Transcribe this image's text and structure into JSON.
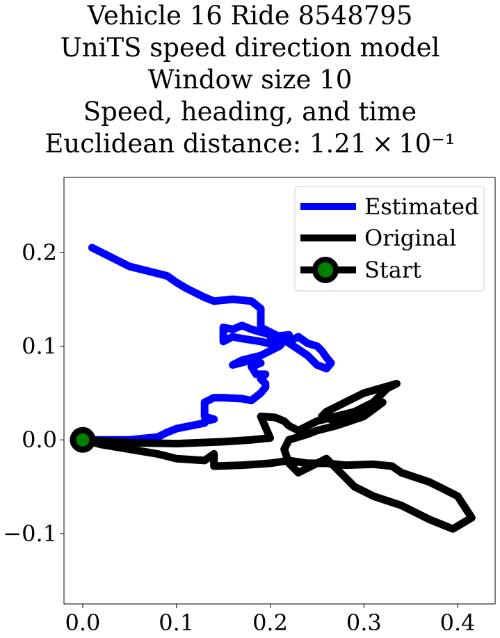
{
  "title_lines": [
    "Vehicle 16 Ride 8548795",
    "UniTS speed direction model",
    "Window size 10",
    "Speed, heading, and time",
    "Euclidean distance: 1.21 × 10⁻¹"
  ],
  "chart_data": {
    "type": "line",
    "xlim": [
      -0.02,
      0.44
    ],
    "ylim": [
      -0.175,
      0.28
    ],
    "x_ticks": [
      0.0,
      0.1,
      0.2,
      0.3,
      0.4
    ],
    "x_tick_labels": [
      "0.0",
      "0.1",
      "0.2",
      "0.3",
      "0.4"
    ],
    "y_ticks": [
      -0.1,
      0.0,
      0.1,
      0.2
    ],
    "y_tick_labels": [
      "−0.1",
      "0.0",
      "0.1",
      "0.2"
    ],
    "grid": false,
    "legend_position": "top-right",
    "legend": [
      "Estimated",
      "Original",
      "Start"
    ],
    "series": [
      {
        "name": "Estimated",
        "color": "#0000ff",
        "points": [
          [
            0.0,
            0.0
          ],
          [
            0.02,
            0.0
          ],
          [
            0.05,
            0.0
          ],
          [
            0.07,
            0.002
          ],
          [
            0.08,
            0.003
          ],
          [
            0.09,
            0.008
          ],
          [
            0.1,
            0.012
          ],
          [
            0.11,
            0.014
          ],
          [
            0.12,
            0.016
          ],
          [
            0.13,
            0.018
          ],
          [
            0.13,
            0.02
          ],
          [
            0.14,
            0.022
          ],
          [
            0.13,
            0.025
          ],
          [
            0.13,
            0.03
          ],
          [
            0.13,
            0.035
          ],
          [
            0.13,
            0.04
          ],
          [
            0.14,
            0.045
          ],
          [
            0.15,
            0.045
          ],
          [
            0.17,
            0.044
          ],
          [
            0.18,
            0.042
          ],
          [
            0.19,
            0.05
          ],
          [
            0.195,
            0.056
          ],
          [
            0.195,
            0.06
          ],
          [
            0.19,
            0.065
          ],
          [
            0.195,
            0.07
          ],
          [
            0.185,
            0.07
          ],
          [
            0.18,
            0.078
          ],
          [
            0.19,
            0.082
          ],
          [
            0.18,
            0.085
          ],
          [
            0.16,
            0.08
          ],
          [
            0.17,
            0.085
          ],
          [
            0.19,
            0.09
          ],
          [
            0.2,
            0.095
          ],
          [
            0.21,
            0.1
          ],
          [
            0.2,
            0.11
          ],
          [
            0.22,
            0.112
          ],
          [
            0.21,
            0.1
          ],
          [
            0.19,
            0.105
          ],
          [
            0.17,
            0.108
          ],
          [
            0.16,
            0.11
          ],
          [
            0.15,
            0.105
          ],
          [
            0.15,
            0.12
          ],
          [
            0.16,
            0.118
          ],
          [
            0.17,
            0.122
          ],
          [
            0.18,
            0.118
          ],
          [
            0.19,
            0.115
          ],
          [
            0.21,
            0.11
          ],
          [
            0.22,
            0.105
          ],
          [
            0.23,
            0.11
          ],
          [
            0.24,
            0.103
          ],
          [
            0.25,
            0.1
          ],
          [
            0.255,
            0.095
          ],
          [
            0.26,
            0.088
          ],
          [
            0.265,
            0.082
          ],
          [
            0.26,
            0.076
          ],
          [
            0.25,
            0.08
          ],
          [
            0.24,
            0.09
          ],
          [
            0.225,
            0.1
          ],
          [
            0.21,
            0.11
          ],
          [
            0.2,
            0.115
          ],
          [
            0.19,
            0.12
          ],
          [
            0.19,
            0.14
          ],
          [
            0.18,
            0.148
          ],
          [
            0.16,
            0.15
          ],
          [
            0.14,
            0.148
          ],
          [
            0.13,
            0.152
          ],
          [
            0.11,
            0.162
          ],
          [
            0.1,
            0.168
          ],
          [
            0.09,
            0.175
          ],
          [
            0.07,
            0.18
          ],
          [
            0.05,
            0.185
          ],
          [
            0.03,
            0.195
          ],
          [
            0.01,
            0.205
          ]
        ]
      },
      {
        "name": "Original",
        "color": "#000000",
        "points": [
          [
            0.0,
            0.0
          ],
          [
            0.05,
            -0.003
          ],
          [
            0.1,
            -0.004
          ],
          [
            0.15,
            -0.002
          ],
          [
            0.18,
            0.0
          ],
          [
            0.2,
            0.002
          ],
          [
            0.19,
            0.025
          ],
          [
            0.205,
            0.024
          ],
          [
            0.215,
            0.02
          ],
          [
            0.22,
            0.015
          ],
          [
            0.23,
            0.01
          ],
          [
            0.25,
            0.02
          ],
          [
            0.27,
            0.025
          ],
          [
            0.29,
            0.03
          ],
          [
            0.31,
            0.04
          ],
          [
            0.325,
            0.055
          ],
          [
            0.335,
            0.06
          ],
          [
            0.3,
            0.05
          ],
          [
            0.28,
            0.04
          ],
          [
            0.26,
            0.03
          ],
          [
            0.255,
            0.025
          ],
          [
            0.27,
            0.02
          ],
          [
            0.29,
            0.025
          ],
          [
            0.31,
            0.035
          ],
          [
            0.32,
            0.04
          ],
          [
            0.3,
            0.025
          ],
          [
            0.27,
            0.015
          ],
          [
            0.25,
            0.01
          ],
          [
            0.24,
            0.006
          ],
          [
            0.22,
            0.0
          ],
          [
            0.215,
            -0.01
          ],
          [
            0.22,
            -0.025
          ],
          [
            0.23,
            -0.035
          ],
          [
            0.24,
            -0.03
          ],
          [
            0.26,
            -0.02
          ],
          [
            0.27,
            -0.03
          ],
          [
            0.29,
            -0.05
          ],
          [
            0.31,
            -0.06
          ],
          [
            0.34,
            -0.07
          ],
          [
            0.37,
            -0.085
          ],
          [
            0.395,
            -0.095
          ],
          [
            0.415,
            -0.083
          ],
          [
            0.4,
            -0.06
          ],
          [
            0.39,
            -0.055
          ],
          [
            0.37,
            -0.045
          ],
          [
            0.34,
            -0.035
          ],
          [
            0.33,
            -0.028
          ],
          [
            0.31,
            -0.026
          ],
          [
            0.28,
            -0.027
          ],
          [
            0.26,
            -0.025
          ],
          [
            0.24,
            -0.025
          ],
          [
            0.22,
            -0.022
          ],
          [
            0.2,
            -0.025
          ],
          [
            0.17,
            -0.027
          ],
          [
            0.14,
            -0.028
          ],
          [
            0.14,
            -0.015
          ],
          [
            0.13,
            -0.022
          ],
          [
            0.1,
            -0.02
          ],
          [
            0.08,
            -0.015
          ],
          [
            0.05,
            -0.01
          ],
          [
            0.02,
            -0.005
          ],
          [
            0.0,
            0.0
          ]
        ]
      }
    ],
    "start_point": {
      "name": "Start",
      "x": 0.0,
      "y": 0.0,
      "edge_color": "#000000",
      "fill_color": "#008000"
    }
  }
}
